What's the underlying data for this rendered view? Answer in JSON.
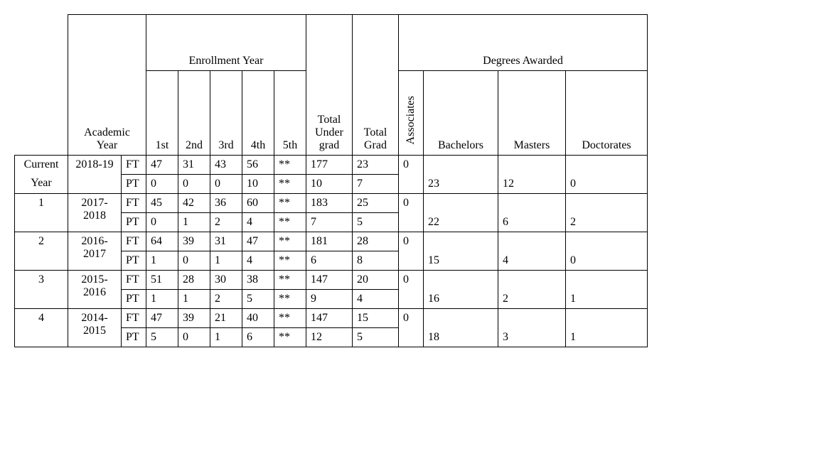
{
  "headers": {
    "academic_year": "Academic Year",
    "enrollment_year": "Enrollment Year",
    "total_undergrad": "Total Under grad",
    "total_grad": "Total Grad",
    "degrees_awarded": "Degrees Awarded",
    "e1": "1st",
    "e2": "2nd",
    "e3": "3rd",
    "e4": "4th",
    "e5": "5th",
    "associates": "Associates",
    "bachelors": "Bachelors",
    "masters": "Masters",
    "doctorates": "Doctorates",
    "ft": "FT",
    "pt": "PT"
  },
  "rows": [
    {
      "index_line1": "Current",
      "index_line2": "Year",
      "ay": "2018-19",
      "ft": {
        "e1": "47",
        "e2": "31",
        "e3": "43",
        "e4": "56",
        "e5": "**",
        "tug": "177",
        "tg": "23"
      },
      "pt": {
        "e1": "0",
        "e2": "0",
        "e3": "0",
        "e4": "10",
        "e5": "**",
        "tug": "10",
        "tg": "7"
      },
      "associates": "0",
      "bachelors": "23",
      "masters": "12",
      "doctorates": "0"
    },
    {
      "index_line1": "1",
      "index_line2": "",
      "ay": "2017-2018",
      "ft": {
        "e1": "45",
        "e2": "42",
        "e3": "36",
        "e4": "60",
        "e5": "**",
        "tug": "183",
        "tg": "25"
      },
      "pt": {
        "e1": "0",
        "e2": "1",
        "e3": "2",
        "e4": "4",
        "e5": "**",
        "tug": "7",
        "tg": "5"
      },
      "associates": "0",
      "bachelors": "22",
      "masters": "6",
      "doctorates": "2"
    },
    {
      "index_line1": "2",
      "index_line2": "",
      "ay": "2016-2017",
      "ft": {
        "e1": "64",
        "e2": "39",
        "e3": "31",
        "e4": "47",
        "e5": "**",
        "tug": "181",
        "tg": "28"
      },
      "pt": {
        "e1": "1",
        "e2": "0",
        "e3": "1",
        "e4": "4",
        "e5": "**",
        "tug": "6",
        "tg": "8"
      },
      "associates": "0",
      "bachelors": "15",
      "masters": "4",
      "doctorates": "0"
    },
    {
      "index_line1": "3",
      "index_line2": "",
      "ay": "2015-2016",
      "ft": {
        "e1": "51",
        "e2": "28",
        "e3": "30",
        "e4": "38",
        "e5": "**",
        "tug": "147",
        "tg": "20"
      },
      "pt": {
        "e1": "1",
        "e2": "1",
        "e3": "2",
        "e4": "5",
        "e5": "**",
        "tug": "9",
        "tg": "4"
      },
      "associates": "0",
      "bachelors": "16",
      "masters": "2",
      "doctorates": "1"
    },
    {
      "index_line1": "4",
      "index_line2": "",
      "ay": "2014-2015",
      "ft": {
        "e1": "47",
        "e2": "39",
        "e3": "21",
        "e4": "40",
        "e5": "**",
        "tug": "147",
        "tg": "15"
      },
      "pt": {
        "e1": "5",
        "e2": "0",
        "e3": "1",
        "e4": "6",
        "e5": "**",
        "tug": "12",
        "tg": "5"
      },
      "associates": "0",
      "bachelors": "18",
      "masters": "3",
      "doctorates": "1"
    }
  ],
  "style": {
    "font_family": "Times New Roman",
    "font_size_pt": 12,
    "background_color": "#ffffff",
    "text_color": "#000000",
    "border_color": "#000000"
  }
}
